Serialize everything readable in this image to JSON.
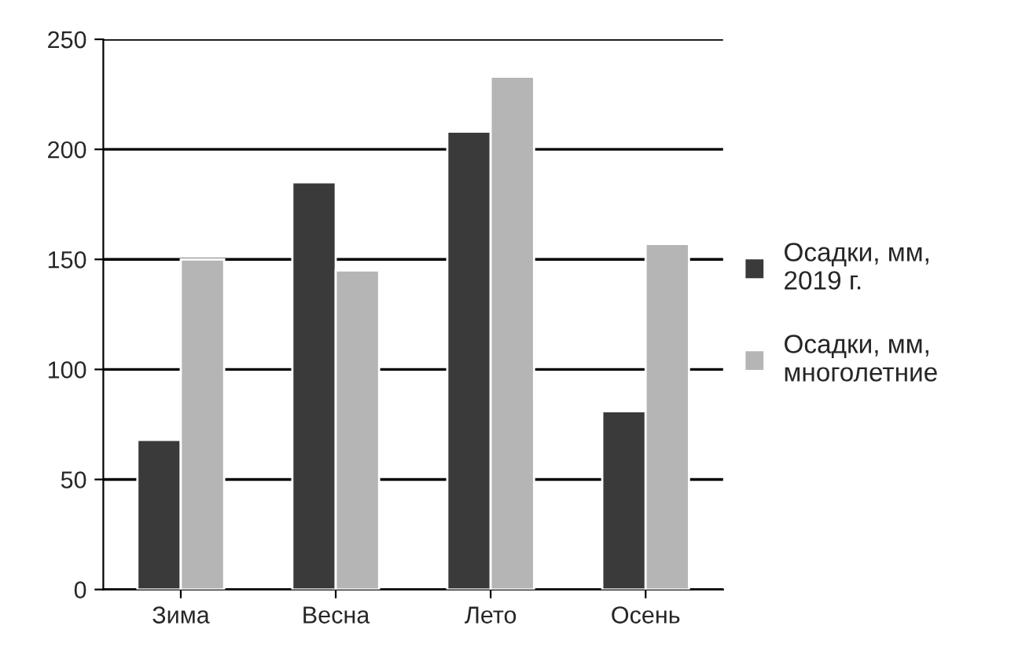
{
  "chart_data": {
    "type": "bar",
    "categories": [
      "Зима",
      "Весна",
      "Лето",
      "Осень"
    ],
    "series": [
      {
        "name": "Осадки, мм, 2019 г.",
        "color": "#3a3a3a",
        "values": [
          68,
          185,
          208,
          81
        ]
      },
      {
        "name": "Осадки, мм, многолетние",
        "color": "#b5b5b5",
        "values": [
          150,
          145,
          233,
          157
        ]
      }
    ],
    "ylim": [
      0,
      250
    ],
    "yticks": [
      0,
      50,
      100,
      150,
      200,
      250
    ],
    "grid": "y",
    "legend": "right"
  }
}
